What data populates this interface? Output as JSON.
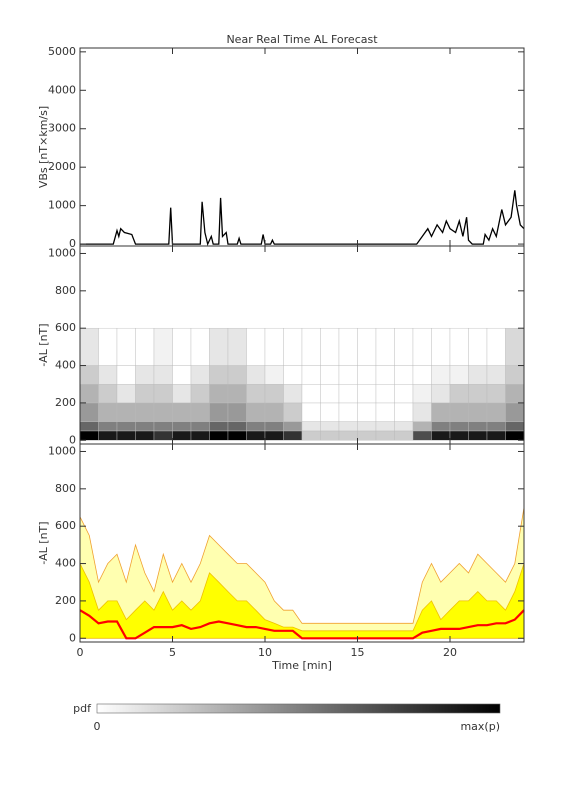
{
  "title": "Near Real Time AL Forecast",
  "chart_data": [
    {
      "type": "line",
      "ylabel": "VBs [nT×km/s]",
      "xlim": [
        0,
        24
      ],
      "xticks": [
        0,
        5,
        10,
        15,
        20
      ],
      "show_xtick_labels": false,
      "ylim": [
        -50,
        5100
      ],
      "yticks": [
        0,
        1000,
        2000,
        3000,
        4000,
        5000
      ],
      "color": "#000000",
      "x": [
        0,
        1.8,
        2.0,
        2.1,
        2.2,
        2.4,
        2.8,
        3.0,
        4.8,
        4.9,
        5.0,
        6.5,
        6.6,
        6.75,
        6.9,
        7.1,
        7.2,
        7.5,
        7.6,
        7.7,
        7.9,
        8.0,
        8.5,
        8.6,
        8.7,
        9.8,
        9.9,
        10.0,
        10.3,
        10.4,
        10.5,
        18.2,
        18.5,
        18.8,
        19.0,
        19.3,
        19.6,
        19.8,
        20.0,
        20.3,
        20.5,
        20.7,
        20.9,
        21.0,
        21.2,
        21.8,
        21.9,
        22.1,
        22.3,
        22.5,
        22.8,
        23.0,
        23.3,
        23.5,
        23.6,
        23.8,
        24.0
      ],
      "values": [
        0,
        0,
        350,
        200,
        400,
        300,
        250,
        0,
        0,
        950,
        0,
        0,
        1100,
        300,
        0,
        200,
        0,
        0,
        1200,
        200,
        300,
        0,
        0,
        150,
        0,
        0,
        250,
        0,
        0,
        100,
        0,
        0,
        200,
        400,
        200,
        500,
        300,
        600,
        400,
        300,
        600,
        200,
        700,
        100,
        0,
        0,
        250,
        100,
        400,
        200,
        900,
        500,
        700,
        1400,
        1000,
        500,
        400
      ]
    },
    {
      "type": "heatmap",
      "ylabel": "-AL [nT]",
      "xlim": [
        0,
        24
      ],
      "xticks": [
        0,
        5,
        10,
        15,
        20
      ],
      "show_xtick_labels": false,
      "ylim": [
        -20,
        1040
      ],
      "yticks": [
        0,
        200,
        400,
        600,
        800,
        1000
      ],
      "x_edges": [
        0,
        1,
        2,
        3,
        4,
        5,
        6,
        7,
        8,
        9,
        10,
        11,
        12,
        13,
        14,
        15,
        16,
        17,
        18,
        19,
        20,
        21,
        22,
        23,
        24
      ],
      "y_edges": [
        0,
        50,
        100,
        200,
        300,
        400,
        600
      ],
      "z": [
        [
          1,
          0.6,
          0.4,
          0.3,
          0.2,
          0.1
        ],
        [
          0.9,
          0.5,
          0.3,
          0.2,
          0.1,
          0
        ],
        [
          0.9,
          0.5,
          0.3,
          0.1,
          0,
          0
        ],
        [
          0.9,
          0.5,
          0.3,
          0.2,
          0.1,
          0
        ],
        [
          0.8,
          0.5,
          0.3,
          0.2,
          0.1,
          0.05
        ],
        [
          0.9,
          0.5,
          0.3,
          0.1,
          0,
          0
        ],
        [
          0.9,
          0.5,
          0.3,
          0.2,
          0.1,
          0
        ],
        [
          1,
          0.6,
          0.4,
          0.3,
          0.2,
          0.1
        ],
        [
          1,
          0.6,
          0.4,
          0.3,
          0.2,
          0.1
        ],
        [
          0.9,
          0.5,
          0.3,
          0.2,
          0.1,
          0
        ],
        [
          0.9,
          0.5,
          0.3,
          0.2,
          0.05,
          0
        ],
        [
          0.8,
          0.4,
          0.2,
          0.1,
          0,
          0
        ],
        [
          0.2,
          0.1,
          0,
          0,
          0,
          0
        ],
        [
          0.2,
          0.1,
          0,
          0,
          0,
          0
        ],
        [
          0.2,
          0.1,
          0,
          0,
          0,
          0
        ],
        [
          0.2,
          0.1,
          0,
          0,
          0,
          0
        ],
        [
          0.2,
          0.1,
          0,
          0,
          0,
          0
        ],
        [
          0.2,
          0.1,
          0,
          0,
          0,
          0
        ],
        [
          0.7,
          0.3,
          0.1,
          0.05,
          0,
          0
        ],
        [
          0.9,
          0.5,
          0.3,
          0.1,
          0.05,
          0
        ],
        [
          0.9,
          0.5,
          0.3,
          0.2,
          0.05,
          0
        ],
        [
          0.9,
          0.5,
          0.3,
          0.2,
          0.1,
          0
        ],
        [
          0.9,
          0.5,
          0.3,
          0.2,
          0.1,
          0
        ],
        [
          1,
          0.6,
          0.4,
          0.3,
          0.2,
          0.15
        ]
      ]
    },
    {
      "type": "band",
      "ylabel": "-AL [nT]",
      "xlabel": "Time [min]",
      "xlim": [
        0,
        24
      ],
      "xticks": [
        0,
        5,
        10,
        15,
        20
      ],
      "show_xtick_labels": true,
      "ylim": [
        -20,
        1040
      ],
      "yticks": [
        0,
        200,
        400,
        600,
        800,
        1000
      ],
      "x": [
        0,
        0.5,
        1,
        1.5,
        2,
        2.5,
        3,
        3.5,
        4,
        4.5,
        5,
        5.5,
        6,
        6.5,
        7,
        7.5,
        8,
        8.5,
        9,
        9.5,
        10,
        10.5,
        11,
        11.5,
        12,
        12.5,
        13,
        13.5,
        14,
        14.5,
        15,
        15.5,
        16,
        16.5,
        17,
        17.5,
        18,
        18.5,
        19,
        19.5,
        20,
        20.5,
        21,
        21.5,
        22,
        22.5,
        23,
        23.5,
        24
      ],
      "series": [
        {
          "style": "area",
          "color": "#ffffb0",
          "outline": "#f0a030",
          "values": [
            650,
            550,
            300,
            400,
            450,
            300,
            500,
            350,
            250,
            450,
            300,
            400,
            300,
            400,
            550,
            500,
            450,
            400,
            400,
            350,
            300,
            200,
            150,
            150,
            80,
            80,
            80,
            80,
            80,
            80,
            80,
            80,
            80,
            80,
            80,
            80,
            80,
            300,
            400,
            300,
            350,
            400,
            350,
            450,
            400,
            350,
            300,
            400,
            700
          ]
        },
        {
          "style": "area",
          "color": "#ffff00",
          "outline": "#f0c000",
          "values": [
            400,
            300,
            150,
            200,
            200,
            100,
            150,
            200,
            150,
            250,
            150,
            200,
            150,
            200,
            350,
            300,
            250,
            200,
            200,
            150,
            100,
            80,
            60,
            60,
            40,
            40,
            40,
            40,
            40,
            40,
            40,
            40,
            40,
            40,
            40,
            40,
            40,
            150,
            200,
            100,
            150,
            200,
            200,
            250,
            200,
            200,
            150,
            250,
            400
          ]
        },
        {
          "style": "line",
          "color": "#ff0000",
          "values": [
            150,
            120,
            80,
            90,
            90,
            0,
            0,
            30,
            60,
            60,
            60,
            70,
            50,
            60,
            80,
            90,
            80,
            70,
            60,
            60,
            50,
            40,
            40,
            40,
            0,
            0,
            0,
            0,
            0,
            0,
            0,
            0,
            0,
            0,
            0,
            0,
            0,
            30,
            40,
            50,
            50,
            50,
            60,
            70,
            70,
            80,
            80,
            100,
            150
          ]
        }
      ]
    }
  ],
  "colorbar": {
    "label": "pdf",
    "min_label": "0",
    "max_label": "max(p)"
  }
}
